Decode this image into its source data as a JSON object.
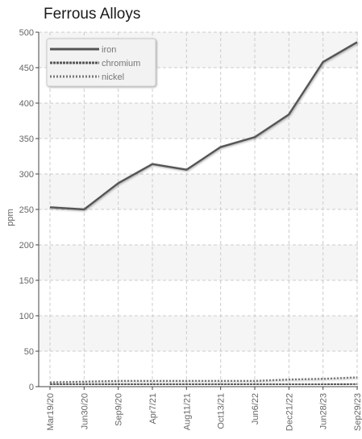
{
  "chart_data": {
    "type": "line",
    "title": "Ferrous Alloys",
    "xlabel": "",
    "ylabel": "ppm",
    "ylim": [
      0,
      500
    ],
    "yticks": [
      0,
      50,
      100,
      150,
      200,
      250,
      300,
      350,
      400,
      450,
      500
    ],
    "categories": [
      "Mar19/20",
      "Jun30/20",
      "Sep9/20",
      "Apr7/21",
      "Aug11/21",
      "Oct13/21",
      "Jun6/22",
      "Dec21/22",
      "Jun28/23",
      "Sep29/23"
    ],
    "series": [
      {
        "name": "iron",
        "color": "#555555",
        "dash": "solid",
        "values": [
          253,
          250,
          287,
          314,
          306,
          338,
          352,
          384,
          458,
          486
        ]
      },
      {
        "name": "chromium",
        "color": "#555555",
        "dash": "dashed",
        "values": [
          3,
          3,
          3,
          3,
          3,
          3,
          3,
          3,
          3,
          4
        ]
      },
      {
        "name": "nickel",
        "color": "#777777",
        "dash": "dotted",
        "values": [
          6,
          7,
          8,
          8,
          8,
          8,
          8,
          10,
          11,
          13
        ]
      }
    ],
    "grid": true,
    "legend_position": "top-left"
  }
}
